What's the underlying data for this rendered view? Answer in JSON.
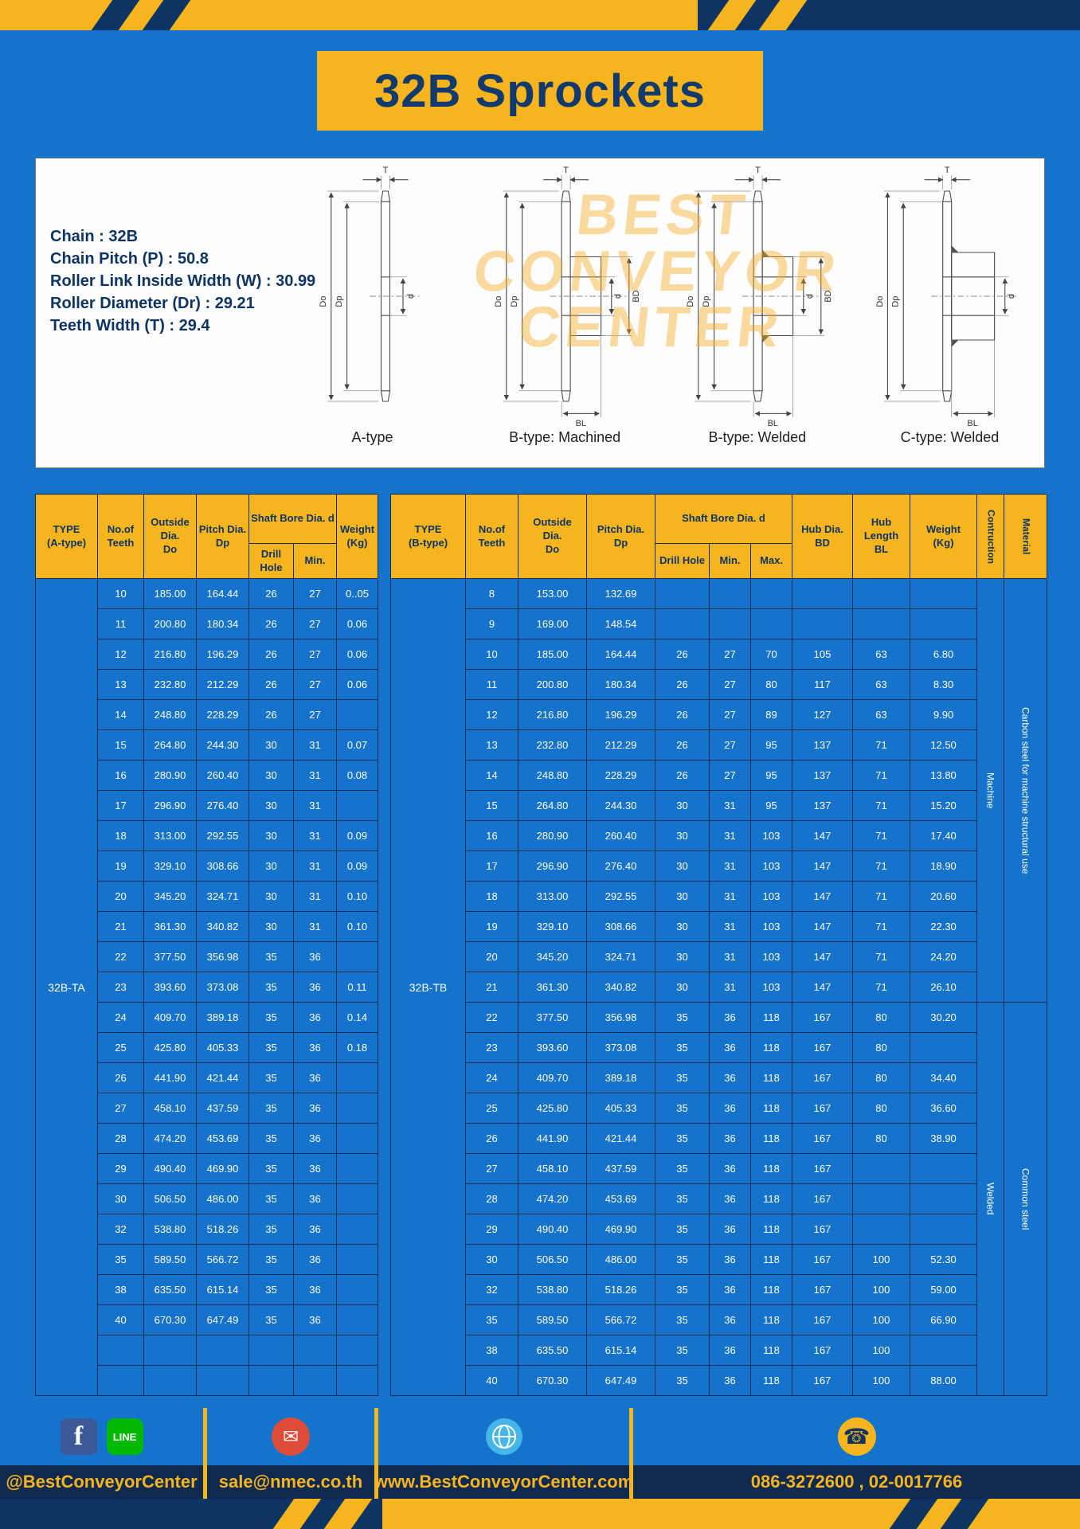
{
  "page": {
    "title": "32B Sprockets"
  },
  "colors": {
    "page_blue": "#1573cb",
    "navy": "#0e3463",
    "yellow": "#f6b51e",
    "footer_navy": "#10294e"
  },
  "specs": {
    "lines": [
      "Chain : 32B",
      "Chain Pitch (P) : 50.8",
      "Roller Link Inside Width (W) : 30.99",
      "Roller Diameter (Dr) : 29.21",
      "Teeth Width (T) : 29.4"
    ]
  },
  "diagrams": {
    "watermark": {
      "line1": "BEST",
      "line2": "CONVEYOR",
      "line3": "CENTER"
    },
    "labels": [
      "A-type",
      "B-type: Machined",
      "B-type: Welded",
      "C-type: Welded"
    ],
    "dims": {
      "t": "T",
      "do": "Do",
      "dp": "Dp",
      "d": "d",
      "bd": "BD",
      "bl": "BL"
    }
  },
  "table_a": {
    "type_label": "32B-TA",
    "headers": {
      "type": "TYPE\n(A-type)",
      "teeth": "No.of\nTeeth",
      "outside": "Outside\nDia.\nDo",
      "pitch": "Pitch Dia.\nDp",
      "shaft": "Shaft Bore Dia. d",
      "drill": "Drill Hole",
      "min": "Min.",
      "weight": "Weight\n(Kg)"
    },
    "rows": [
      [
        "10",
        "185.00",
        "164.44",
        "26",
        "27",
        "0..05"
      ],
      [
        "11",
        "200.80",
        "180.34",
        "26",
        "27",
        "0.06"
      ],
      [
        "12",
        "216.80",
        "196.29",
        "26",
        "27",
        "0.06"
      ],
      [
        "13",
        "232.80",
        "212.29",
        "26",
        "27",
        "0.06"
      ],
      [
        "14",
        "248.80",
        "228.29",
        "26",
        "27",
        ""
      ],
      [
        "15",
        "264.80",
        "244.30",
        "30",
        "31",
        "0.07"
      ],
      [
        "16",
        "280.90",
        "260.40",
        "30",
        "31",
        "0.08"
      ],
      [
        "17",
        "296.90",
        "276.40",
        "30",
        "31",
        ""
      ],
      [
        "18",
        "313.00",
        "292.55",
        "30",
        "31",
        "0.09"
      ],
      [
        "19",
        "329.10",
        "308.66",
        "30",
        "31",
        "0.09"
      ],
      [
        "20",
        "345.20",
        "324.71",
        "30",
        "31",
        "0.10"
      ],
      [
        "21",
        "361.30",
        "340.82",
        "30",
        "31",
        "0.10"
      ],
      [
        "22",
        "377.50",
        "356.98",
        "35",
        "36",
        ""
      ],
      [
        "23",
        "393.60",
        "373.08",
        "35",
        "36",
        "0.11"
      ],
      [
        "24",
        "409.70",
        "389.18",
        "35",
        "36",
        "0.14"
      ],
      [
        "25",
        "425.80",
        "405.33",
        "35",
        "36",
        "0.18"
      ],
      [
        "26",
        "441.90",
        "421.44",
        "35",
        "36",
        ""
      ],
      [
        "27",
        "458.10",
        "437.59",
        "35",
        "36",
        ""
      ],
      [
        "28",
        "474.20",
        "453.69",
        "35",
        "36",
        ""
      ],
      [
        "29",
        "490.40",
        "469.90",
        "35",
        "36",
        ""
      ],
      [
        "30",
        "506.50",
        "486.00",
        "35",
        "36",
        ""
      ],
      [
        "32",
        "538.80",
        "518.26",
        "35",
        "36",
        ""
      ],
      [
        "35",
        "589.50",
        "566.72",
        "35",
        "36",
        ""
      ],
      [
        "38",
        "635.50",
        "615.14",
        "35",
        "36",
        ""
      ],
      [
        "40",
        "670.30",
        "647.49",
        "35",
        "36",
        ""
      ],
      [
        "",
        "",
        "",
        "",
        "",
        ""
      ],
      [
        "",
        "",
        "",
        "",
        "",
        ""
      ]
    ]
  },
  "table_b": {
    "type_label": "32B-TB",
    "headers": {
      "type": "TYPE\n(B-type)",
      "teeth": "No.of\nTeeth",
      "outside": "Outside\nDia.\nDo",
      "pitch": "Pitch Dia.\nDp",
      "shaft": "Shaft Bore Dia. d",
      "drill": "Drill Hole",
      "min": "Min.",
      "max": "Max.",
      "hub_dia": "Hub Dia.\nBD",
      "hub_len": "Hub\nLength\nBL",
      "weight": "Weight\n(Kg)",
      "construction": "Contruction",
      "material": "Material"
    },
    "rows": [
      [
        "8",
        "153.00",
        "132.69",
        "",
        "",
        "",
        "",
        "",
        ""
      ],
      [
        "9",
        "169.00",
        "148.54",
        "",
        "",
        "",
        "",
        "",
        ""
      ],
      [
        "10",
        "185.00",
        "164.44",
        "26",
        "27",
        "70",
        "105",
        "63",
        "6.80"
      ],
      [
        "11",
        "200.80",
        "180.34",
        "26",
        "27",
        "80",
        "117",
        "63",
        "8.30"
      ],
      [
        "12",
        "216.80",
        "196.29",
        "26",
        "27",
        "89",
        "127",
        "63",
        "9.90"
      ],
      [
        "13",
        "232.80",
        "212.29",
        "26",
        "27",
        "95",
        "137",
        "71",
        "12.50"
      ],
      [
        "14",
        "248.80",
        "228.29",
        "26",
        "27",
        "95",
        "137",
        "71",
        "13.80"
      ],
      [
        "15",
        "264.80",
        "244.30",
        "30",
        "31",
        "95",
        "137",
        "71",
        "15.20"
      ],
      [
        "16",
        "280.90",
        "260.40",
        "30",
        "31",
        "103",
        "147",
        "71",
        "17.40"
      ],
      [
        "17",
        "296.90",
        "276.40",
        "30",
        "31",
        "103",
        "147",
        "71",
        "18.90"
      ],
      [
        "18",
        "313.00",
        "292.55",
        "30",
        "31",
        "103",
        "147",
        "71",
        "20.60"
      ],
      [
        "19",
        "329.10",
        "308.66",
        "30",
        "31",
        "103",
        "147",
        "71",
        "22.30"
      ],
      [
        "20",
        "345.20",
        "324.71",
        "30",
        "31",
        "103",
        "147",
        "71",
        "24.20"
      ],
      [
        "21",
        "361.30",
        "340.82",
        "30",
        "31",
        "103",
        "147",
        "71",
        "26.10"
      ],
      [
        "22",
        "377.50",
        "356.98",
        "35",
        "36",
        "118",
        "167",
        "80",
        "30.20"
      ],
      [
        "23",
        "393.60",
        "373.08",
        "35",
        "36",
        "118",
        "167",
        "80",
        ""
      ],
      [
        "24",
        "409.70",
        "389.18",
        "35",
        "36",
        "118",
        "167",
        "80",
        "34.40"
      ],
      [
        "25",
        "425.80",
        "405.33",
        "35",
        "36",
        "118",
        "167",
        "80",
        "36.60"
      ],
      [
        "26",
        "441.90",
        "421.44",
        "35",
        "36",
        "118",
        "167",
        "80",
        "38.90"
      ],
      [
        "27",
        "458.10",
        "437.59",
        "35",
        "36",
        "118",
        "167",
        "",
        ""
      ],
      [
        "28",
        "474.20",
        "453.69",
        "35",
        "36",
        "118",
        "167",
        "",
        ""
      ],
      [
        "29",
        "490.40",
        "469.90",
        "35",
        "36",
        "118",
        "167",
        "",
        ""
      ],
      [
        "30",
        "506.50",
        "486.00",
        "35",
        "36",
        "118",
        "167",
        "100",
        "52.30"
      ],
      [
        "32",
        "538.80",
        "518.26",
        "35",
        "36",
        "118",
        "167",
        "100",
        "59.00"
      ],
      [
        "35",
        "589.50",
        "566.72",
        "35",
        "36",
        "118",
        "167",
        "100",
        "66.90"
      ],
      [
        "38",
        "635.50",
        "615.14",
        "35",
        "36",
        "118",
        "167",
        "100",
        ""
      ],
      [
        "40",
        "670.30",
        "647.49",
        "35",
        "36",
        "118",
        "167",
        "100",
        "88.00"
      ]
    ],
    "span_cols": [
      {
        "name": "construction",
        "groups": [
          {
            "label": "Machine",
            "from": 0,
            "count": 14
          },
          {
            "label": "Welded",
            "from": 14,
            "count": 13
          }
        ]
      },
      {
        "name": "material",
        "groups": [
          {
            "label": "Carbon steel for machine structural use",
            "from": 0,
            "count": 14
          },
          {
            "label": "Common steel",
            "from": 14,
            "count": 13
          }
        ]
      }
    ]
  },
  "footer": {
    "facebook_glyph": "f",
    "line_glyph": "LINE",
    "email_glyph": "✉",
    "phone_glyph": "☎",
    "sections": [
      {
        "label": "@BestConveyorCenter"
      },
      {
        "label": "sale@nmec.co.th"
      },
      {
        "label": "www.BestConveyorCenter.com"
      },
      {
        "label": "086-3272600 , 02-0017766"
      }
    ]
  }
}
